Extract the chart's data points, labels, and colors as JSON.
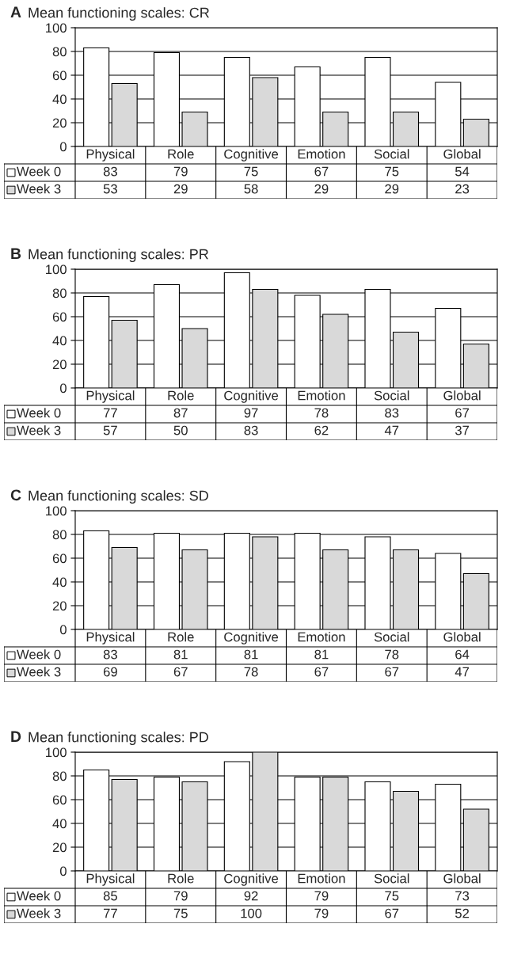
{
  "chart_data": [
    {
      "type": "bar",
      "title": "Mean functioning scales: CR",
      "annotations": [
        "A"
      ],
      "categories": [
        "Physical",
        "Role",
        "Cognitive",
        "Emotion",
        "Social",
        "Global"
      ],
      "series": [
        {
          "name": "Week 0",
          "color": "#ffffff",
          "values": [
            83,
            79,
            75,
            67,
            75,
            54
          ]
        },
        {
          "name": "Week 3",
          "color": "#d9d9d9",
          "values": [
            53,
            29,
            58,
            29,
            29,
            23
          ]
        }
      ],
      "ylim": [
        0,
        100
      ],
      "yticks": [
        0,
        20,
        40,
        60,
        80,
        100
      ],
      "grid": "y",
      "legend": "bottom",
      "data_labels": true
    },
    {
      "type": "bar",
      "title": "Mean functioning scales: PR",
      "annotations": [
        "B"
      ],
      "categories": [
        "Physical",
        "Role",
        "Cognitive",
        "Emotion",
        "Social",
        "Global"
      ],
      "series": [
        {
          "name": "Week 0",
          "color": "#ffffff",
          "values": [
            77,
            87,
            97,
            78,
            83,
            67
          ]
        },
        {
          "name": "Week 3",
          "color": "#d9d9d9",
          "values": [
            57,
            50,
            83,
            62,
            47,
            37
          ]
        }
      ],
      "ylim": [
        0,
        100
      ],
      "yticks": [
        0,
        20,
        40,
        60,
        80,
        100
      ],
      "grid": "y",
      "legend": "bottom",
      "data_labels": true
    },
    {
      "type": "bar",
      "title": "Mean functioning scales: SD",
      "annotations": [
        "C"
      ],
      "categories": [
        "Physical",
        "Role",
        "Cognitive",
        "Emotion",
        "Social",
        "Global"
      ],
      "series": [
        {
          "name": "Week 0",
          "color": "#ffffff",
          "values": [
            83,
            81,
            81,
            81,
            78,
            64
          ]
        },
        {
          "name": "Week 3",
          "color": "#d9d9d9",
          "values": [
            69,
            67,
            78,
            67,
            67,
            47
          ]
        }
      ],
      "ylim": [
        0,
        100
      ],
      "yticks": [
        0,
        20,
        40,
        60,
        80,
        100
      ],
      "grid": "y",
      "legend": "bottom",
      "data_labels": true
    },
    {
      "type": "bar",
      "title": "Mean functioning scales: PD",
      "annotations": [
        "D"
      ],
      "categories": [
        "Physical",
        "Role",
        "Cognitive",
        "Emotion",
        "Social",
        "Global"
      ],
      "series": [
        {
          "name": "Week 0",
          "color": "#ffffff",
          "values": [
            85,
            79,
            92,
            79,
            75,
            73
          ]
        },
        {
          "name": "Week 3",
          "color": "#d9d9d9",
          "values": [
            77,
            75,
            100,
            79,
            67,
            52
          ]
        }
      ],
      "ylim": [
        0,
        100
      ],
      "yticks": [
        0,
        20,
        40,
        60,
        80,
        100
      ],
      "grid": "y",
      "legend": "bottom",
      "data_labels": true
    }
  ]
}
